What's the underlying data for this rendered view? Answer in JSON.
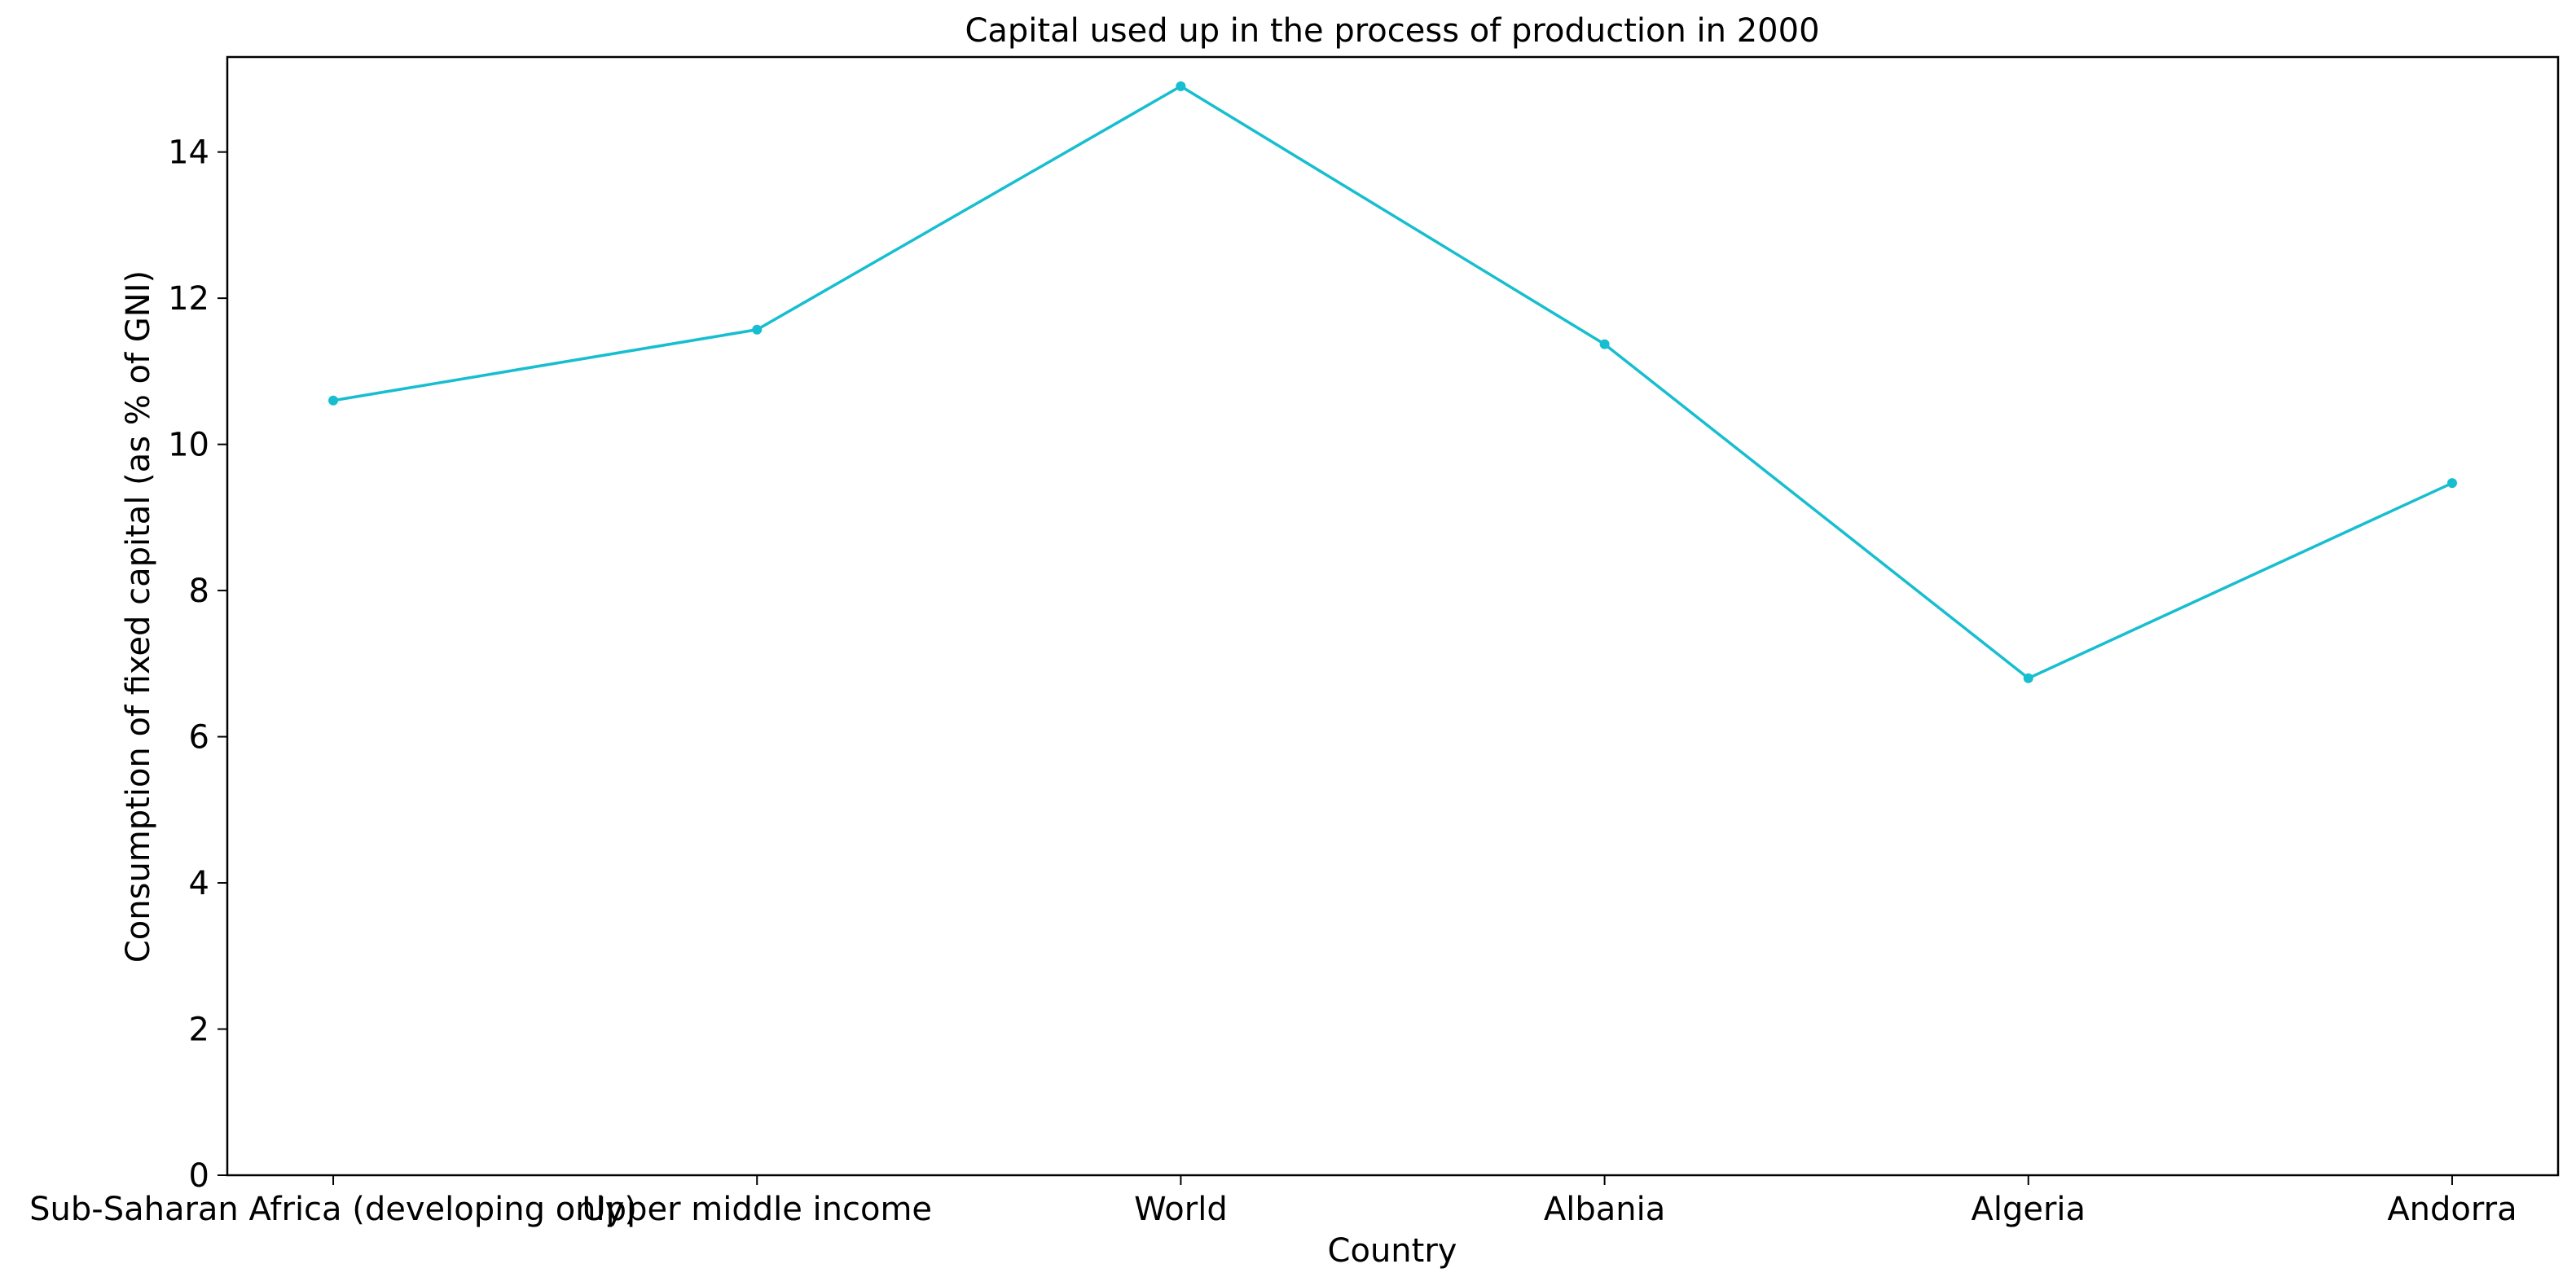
{
  "chart_data": {
    "type": "line",
    "title": "Capital used up in the process of production in 2000",
    "xlabel": "Country",
    "ylabel": "Consumption of fixed capital (as % of GNI)",
    "categories": [
      "Sub-Saharan Africa (developing only)",
      "Upper middle income",
      "World",
      "Albania",
      "Algeria",
      "Andorra"
    ],
    "series": [
      {
        "values": [
          10.6,
          11.57,
          14.9,
          11.37,
          6.8,
          9.47
        ],
        "color": "#17becf"
      }
    ],
    "ylim": [
      0,
      15.3
    ],
    "yticks": [
      0,
      2,
      4,
      6,
      8,
      10,
      12,
      14
    ],
    "grid": false,
    "legend": "none"
  }
}
